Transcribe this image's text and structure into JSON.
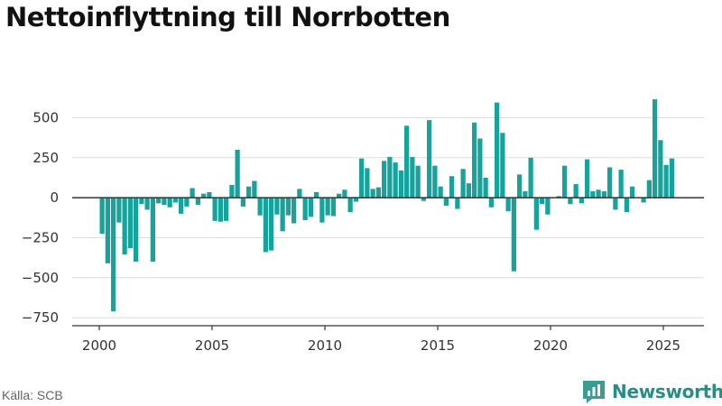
{
  "title": "Nettoinflyttning till Norrbotten",
  "source": "Källa: SCB",
  "brand": {
    "name": "Newsworthy",
    "icon": "newsworthy-logo-icon",
    "color": "#3a9c94"
  },
  "colors": {
    "bar": "#17a39b",
    "zero_line": "#333333",
    "grid": "#dcdcdc"
  },
  "chart_data": {
    "type": "bar",
    "title": "Nettoinflyttning till Norrbotten",
    "xlabel": "",
    "ylabel": "",
    "ylim": [
      -800,
      700
    ],
    "xlim": [
      1998.8,
      2026.8
    ],
    "x_ticks": [
      2000,
      2005,
      2010,
      2015,
      2020,
      2025
    ],
    "x_tick_labels": [
      "2000",
      "2005",
      "2010",
      "2015",
      "2020",
      "2025"
    ],
    "y_ticks": [
      -750,
      -500,
      -250,
      0,
      250,
      500
    ],
    "y_tick_labels": [
      "−750",
      "−500",
      "−250",
      "0",
      "250",
      "500"
    ],
    "grid": true,
    "legend": "none",
    "bar_width_years": 0.21,
    "x": [
      2000.125,
      2000.375,
      2000.625,
      2000.875,
      2001.125,
      2001.375,
      2001.625,
      2001.875,
      2002.125,
      2002.375,
      2002.625,
      2002.875,
      2003.125,
      2003.375,
      2003.625,
      2003.875,
      2004.125,
      2004.375,
      2004.625,
      2004.875,
      2005.125,
      2005.375,
      2005.625,
      2005.875,
      2006.125,
      2006.375,
      2006.625,
      2006.875,
      2007.125,
      2007.375,
      2007.625,
      2007.875,
      2008.125,
      2008.375,
      2008.625,
      2008.875,
      2009.125,
      2009.375,
      2009.625,
      2009.875,
      2010.125,
      2010.375,
      2010.625,
      2010.875,
      2011.125,
      2011.375,
      2011.625,
      2011.875,
      2012.125,
      2012.375,
      2012.625,
      2012.875,
      2013.125,
      2013.375,
      2013.625,
      2013.875,
      2014.125,
      2014.375,
      2014.625,
      2014.875,
      2015.125,
      2015.375,
      2015.625,
      2015.875,
      2016.125,
      2016.375,
      2016.625,
      2016.875,
      2017.125,
      2017.375,
      2017.625,
      2017.875,
      2018.125,
      2018.375,
      2018.625,
      2018.875,
      2019.125,
      2019.375,
      2019.625,
      2019.875,
      2020.125,
      2020.375,
      2020.625,
      2020.875,
      2021.125,
      2021.375,
      2021.625,
      2021.875,
      2022.125,
      2022.375,
      2022.625,
      2022.875,
      2023.125,
      2023.375,
      2023.625,
      2023.875,
      2024.125,
      2024.375,
      2024.625,
      2024.875,
      2025.125,
      2025.375
    ],
    "values": [
      -225,
      -410,
      -710,
      -155,
      -355,
      -315,
      -400,
      -40,
      -75,
      -400,
      -35,
      -45,
      -60,
      -30,
      -100,
      -55,
      60,
      -45,
      25,
      35,
      -145,
      -150,
      -145,
      80,
      300,
      -55,
      70,
      105,
      -110,
      -340,
      -330,
      -105,
      -210,
      -110,
      -160,
      55,
      -140,
      -120,
      35,
      -155,
      -110,
      -115,
      25,
      50,
      -90,
      -25,
      245,
      185,
      55,
      65,
      230,
      255,
      220,
      170,
      450,
      255,
      200,
      -20,
      485,
      200,
      70,
      -50,
      135,
      -70,
      180,
      90,
      470,
      370,
      125,
      -60,
      595,
      405,
      -85,
      -460,
      145,
      40,
      250,
      -200,
      -40,
      -105,
      0,
      10,
      200,
      -40,
      85,
      -35,
      240,
      40,
      50,
      40,
      190,
      -75,
      175,
      -90,
      70,
      0,
      -30,
      110,
      615,
      360,
      205,
      245
    ]
  }
}
